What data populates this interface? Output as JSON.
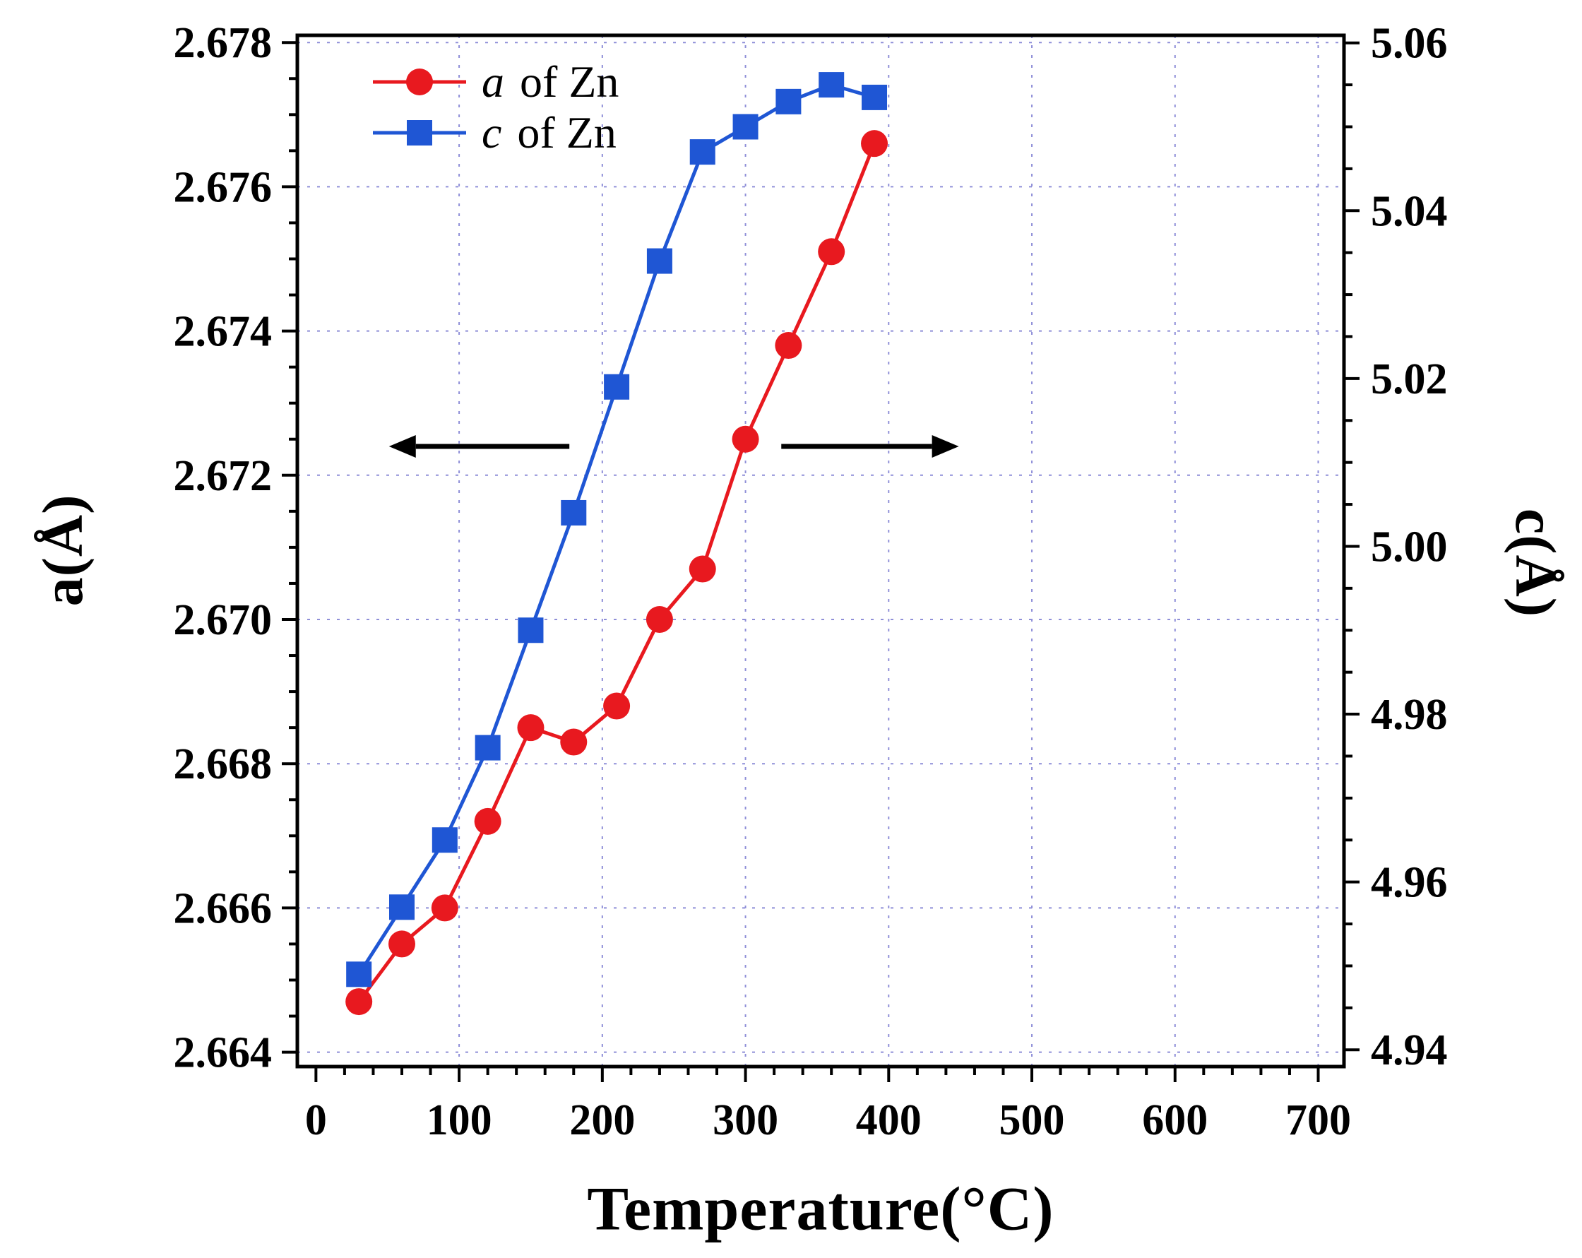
{
  "chart_data": {
    "type": "line",
    "title": "",
    "x": [
      30,
      60,
      90,
      120,
      150,
      180,
      210,
      240,
      270,
      300,
      330,
      360,
      390
    ],
    "series": [
      {
        "name": "a of Zn",
        "axis": "left",
        "marker": "circle",
        "color": "#e8191f",
        "values": [
          2.6647,
          2.6655,
          2.666,
          2.6672,
          2.6685,
          2.6683,
          2.6688,
          2.67,
          2.6707,
          2.6725,
          2.6738,
          2.6751,
          2.6766
        ]
      },
      {
        "name": "c of Zn",
        "axis": "right",
        "marker": "square",
        "color": "#1f56d4",
        "values": [
          4.949,
          4.957,
          4.965,
          4.976,
          4.99,
          5.004,
          5.019,
          5.034,
          5.047,
          5.05,
          5.053,
          5.055,
          5.0535
        ]
      }
    ],
    "xlabel": "Temperature(°C)",
    "ylabel_left": "a(Å)",
    "ylabel_right": "c(Å)",
    "xlim": [
      -13,
      718
    ],
    "ylim_left": [
      2.6638,
      2.6781
    ],
    "ylim_right": [
      4.938,
      5.0609
    ],
    "x_ticks": [
      0,
      100,
      200,
      300,
      400,
      500,
      600,
      700
    ],
    "y_left_ticks": [
      2.664,
      2.666,
      2.668,
      2.67,
      2.672,
      2.674,
      2.676,
      2.678
    ],
    "y_right_ticks": [
      4.94,
      4.96,
      4.98,
      5.0,
      5.02,
      5.04,
      5.06
    ],
    "x_minor_step": 20,
    "y_left_minor_step": 0.0005,
    "y_right_minor_step": 0.005,
    "y_left_decimals": 3,
    "y_right_decimals": 2,
    "grid": true,
    "grid_color": "#8f8fd8",
    "frame_color": "#000000",
    "legend_position": "top-left",
    "legend": [
      {
        "var": "a",
        "rest": " of Zn"
      },
      {
        "var": "c",
        "rest": " of Zn"
      }
    ],
    "arrows": [
      {
        "from_x": 177,
        "to_x": 51,
        "y": 2.6724,
        "points_to": "left-axis"
      },
      {
        "from_x": 325,
        "to_x": 449,
        "y": 2.6724,
        "points_to": "right-axis"
      }
    ]
  }
}
